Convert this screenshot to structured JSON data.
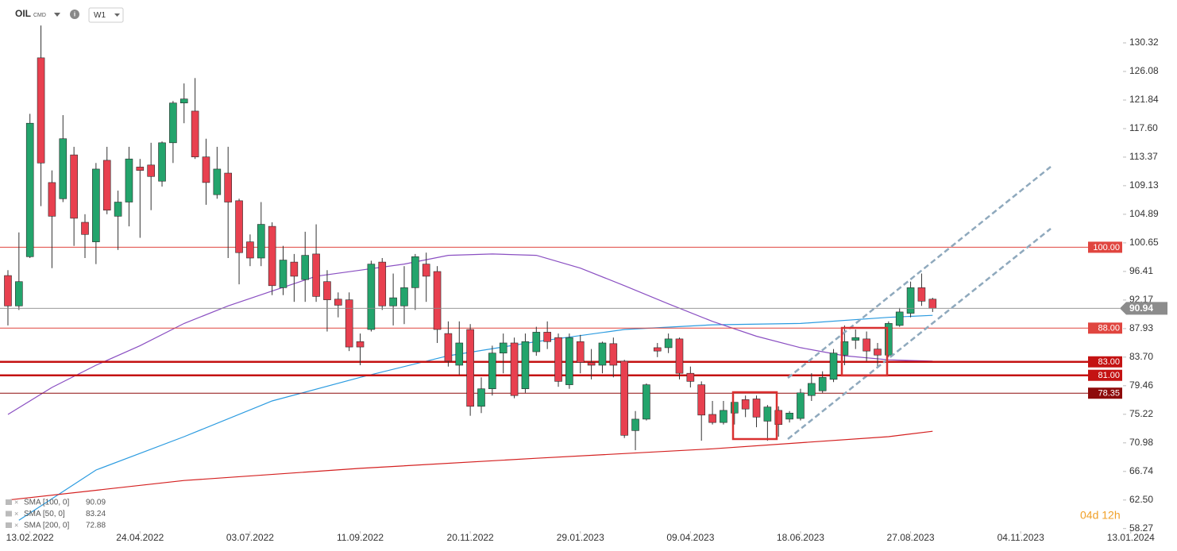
{
  "toolbar": {
    "symbol": "OIL",
    "market": "CMD",
    "timeframe": "W1"
  },
  "chart_data": {
    "type": "candlestick",
    "up_color": "#23a46c",
    "down_color": "#e8404f",
    "open": [
      95.8,
      91.3,
      98.6,
      128.1,
      109.6,
      107.2,
      113.7,
      103.7,
      100.8,
      112.9,
      104.6,
      106.7,
      111.9,
      112.2,
      109.8,
      115.5,
      121.4,
      120.2,
      113.4,
      107.8,
      111.0,
      106.9,
      100.8,
      98.4,
      103.1,
      94.0,
      97.8,
      95.2,
      99.0,
      94.9,
      92.3,
      92.2,
      86.0,
      87.8,
      97.8,
      91.3,
      91.3,
      94.0,
      97.5,
      96.4,
      87.2,
      82.5,
      87.8,
      76.4,
      79.0,
      84.3,
      85.8,
      79.0,
      84.5,
      87.4,
      86.6,
      79.6,
      86.0,
      82.9,
      82.5,
      85.7,
      83.1,
      72.8,
      74.5,
      85.1,
      85.1,
      86.4,
      81.3,
      79.6,
      75.2,
      74.0,
      75.4,
      77.4,
      77.5,
      74.2,
      75.8,
      74.5,
      74.6,
      78.0,
      78.7,
      80.4,
      84.0,
      86.2,
      86.4,
      84.9,
      84.0,
      88.4,
      90.2,
      94.0,
      92.3
    ],
    "high": [
      96.6,
      102.2,
      119.8,
      132.9,
      111.4,
      119.6,
      114.9,
      104.9,
      112.5,
      114.9,
      108.4,
      114.9,
      113.1,
      115.5,
      115.7,
      121.7,
      124.3,
      125.1,
      116.1,
      114.9,
      114.9,
      107.2,
      101.9,
      106.7,
      103.7,
      100.2,
      99.0,
      102.3,
      103.4,
      96.6,
      93.3,
      93.3,
      87.2,
      98.0,
      98.4,
      96.1,
      97.2,
      99.0,
      99.2,
      97.2,
      89.0,
      89.0,
      88.6,
      80.7,
      85.4,
      87.2,
      86.6,
      87.2,
      88.2,
      89.0,
      87.2,
      87.2,
      87.0,
      84.9,
      86.0,
      86.6,
      83.3,
      75.7,
      79.8,
      85.8,
      87.2,
      86.6,
      82.3,
      80.1,
      77.2,
      77.2,
      76.4,
      78.0,
      78.0,
      76.6,
      76.4,
      75.7,
      79.0,
      81.3,
      81.6,
      84.9,
      88.4,
      87.8,
      87.5,
      85.8,
      89.0,
      91.0,
      94.9,
      96.1,
      92.5
    ],
    "low": [
      88.4,
      90.7,
      98.4,
      106.1,
      96.9,
      106.7,
      100.2,
      98.4,
      97.5,
      104.9,
      99.6,
      103.1,
      101.4,
      105.5,
      109.0,
      112.5,
      118.4,
      113.1,
      106.3,
      107.2,
      98.4,
      94.5,
      97.2,
      97.2,
      92.9,
      92.9,
      91.9,
      91.9,
      91.9,
      87.5,
      89.6,
      84.6,
      82.5,
      87.5,
      90.7,
      88.4,
      88.6,
      90.7,
      91.9,
      85.8,
      82.3,
      81.1,
      75.0,
      75.4,
      78.0,
      81.3,
      77.6,
      78.4,
      83.9,
      84.9,
      79.3,
      79.0,
      81.3,
      80.4,
      81.3,
      80.7,
      71.7,
      69.9,
      74.3,
      83.7,
      84.3,
      80.4,
      79.2,
      71.3,
      73.7,
      73.7,
      73.7,
      74.8,
      73.3,
      71.3,
      71.9,
      74.0,
      74.3,
      77.2,
      78.4,
      80.0,
      82.5,
      84.9,
      83.1,
      82.3,
      83.7,
      88.2,
      89.6,
      91.3,
      90.4
    ],
    "close": [
      91.3,
      94.9,
      118.4,
      112.5,
      104.6,
      116.1,
      104.3,
      101.9,
      111.6,
      105.5,
      106.7,
      113.1,
      111.4,
      110.5,
      115.5,
      121.4,
      122.0,
      113.4,
      109.6,
      111.6,
      106.7,
      99.2,
      98.4,
      103.4,
      94.3,
      98.1,
      95.7,
      98.8,
      92.7,
      92.2,
      91.4,
      85.2,
      85.2,
      97.5,
      91.3,
      92.5,
      94.0,
      98.6,
      95.7,
      87.8,
      83.1,
      85.8,
      76.4,
      79.0,
      84.3,
      85.8,
      78.0,
      86.0,
      87.4,
      86.0,
      80.1,
      86.6,
      82.9,
      82.5,
      85.8,
      82.5,
      72.1,
      74.5,
      79.6,
      84.6,
      86.4,
      81.3,
      80.1,
      75.1,
      74.0,
      75.8,
      77.0,
      76.0,
      74.8,
      76.3,
      73.7,
      75.4,
      78.4,
      79.8,
      80.7,
      84.3,
      86.0,
      86.6,
      84.6,
      84.0,
      88.7,
      90.4,
      94.0,
      92.0,
      90.94
    ],
    "xlim": [
      -0.72,
      106.2
    ],
    "xticks": [
      {
        "value": 2,
        "label": "13.02.2022"
      },
      {
        "value": 12,
        "label": "24.04.2022"
      },
      {
        "value": 22,
        "label": "03.07.2022"
      },
      {
        "value": 32,
        "label": "11.09.2022"
      },
      {
        "value": 42,
        "label": "20.11.2022"
      },
      {
        "value": 52,
        "label": "29.01.2023"
      },
      {
        "value": 62,
        "label": "09.04.2023"
      },
      {
        "value": 72,
        "label": "18.06.2023"
      },
      {
        "value": 82,
        "label": "27.08.2023"
      },
      {
        "value": 92,
        "label": "04.11.2023"
      },
      {
        "value": 102,
        "label": "13.01.2024"
      }
    ],
    "ylim": [
      58.0,
      136.68
    ],
    "yticks": [
      130.32,
      126.08,
      121.84,
      {
        "value": 117.6,
        "label": "117.60"
      },
      113.37,
      109.13,
      104.89,
      100.65,
      96.41,
      92.17,
      87.93,
      {
        "value": 83.7,
        "label": "83.70"
      },
      79.46,
      75.22,
      70.98,
      66.74,
      {
        "value": 62.5,
        "label": "62.50"
      },
      58.27
    ],
    "grid": false,
    "levels": [
      {
        "value": 100,
        "label": "100.00",
        "color": "#e0453f",
        "width": 1
      },
      {
        "value": 88,
        "label": "88.00",
        "color": "#e0453f",
        "width": 1
      },
      {
        "value": 83,
        "label": "83.00",
        "color": "#c41212",
        "width": 2.5
      },
      {
        "value": 81,
        "label": "81.00",
        "color": "#c41212",
        "width": 2.5
      },
      {
        "value": 78.35,
        "label": "78.35",
        "color": "#8e0b0b",
        "width": 1
      }
    ],
    "last_price": {
      "value": 90.94,
      "label": "90.94",
      "color": "#8c8c8c"
    },
    "overlays": [
      {
        "name": "SMA [100, 0]",
        "last": 90.09,
        "color": "#2b9be0",
        "x": [
          1,
          8,
          16,
          24,
          32,
          40,
          48,
          56,
          64,
          72,
          80,
          84
        ],
        "values": [
          59.5,
          66.95,
          71.9,
          77.2,
          80.7,
          83.9,
          86.0,
          87.8,
          88.5,
          88.7,
          89.6,
          89.9
        ]
      },
      {
        "name": "SMA [50, 0]",
        "last": 83.24,
        "color": "#8a4fc2",
        "x": [
          0,
          4,
          8,
          12,
          16,
          20,
          24,
          28,
          32,
          36,
          40,
          44,
          48,
          52,
          56,
          60,
          64,
          68,
          72,
          76,
          80,
          84
        ],
        "values": [
          75.2,
          79.2,
          82.5,
          85.4,
          88.7,
          91.3,
          93.5,
          95.7,
          96.6,
          97.5,
          98.8,
          99.0,
          98.8,
          96.9,
          94.3,
          91.6,
          89.0,
          86.8,
          85.1,
          83.9,
          83.3,
          83.1
        ]
      },
      {
        "name": "SMA [200, 0]",
        "last": 72.88,
        "color": "#d42020",
        "x": [
          0,
          16,
          32,
          48,
          64,
          72,
          80,
          84
        ],
        "values": [
          62.5,
          65.4,
          67.2,
          68.7,
          70.1,
          71.0,
          71.9,
          72.7
        ]
      }
    ],
    "countdown": "04d 12h"
  }
}
